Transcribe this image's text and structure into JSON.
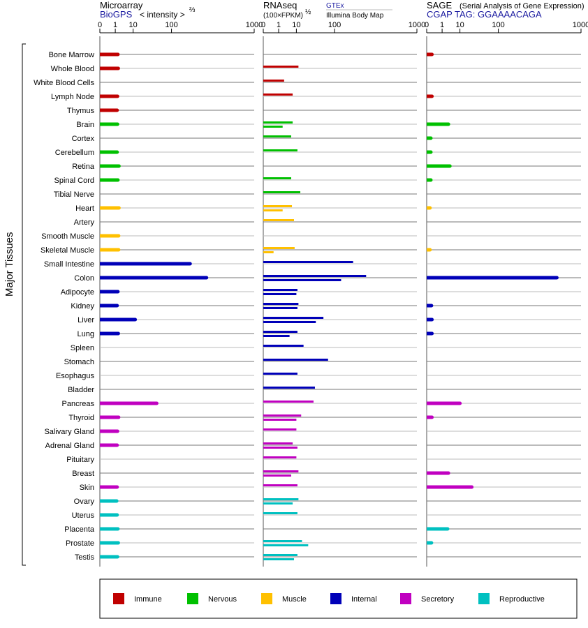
{
  "axis_title": "Major Tissues",
  "panels": [
    {
      "heading": "Microarray",
      "source": "BioGPS",
      "scale_note": "< intensity >",
      "scale_exp": "⅔"
    },
    {
      "heading": "RNAseq",
      "sublabel": "(100×FPKM)",
      "scale_exp": "½",
      "source_link": "GTEx",
      "source": "Illumina Body Map"
    },
    {
      "heading": "SAGE",
      "subtitle": "(Serial Analysis of Gene Expression)",
      "source": "CGAP TAG: GGAAAACAGA"
    }
  ],
  "legend": [
    {
      "label": "Immune",
      "color": "#c00000"
    },
    {
      "label": "Nervous",
      "color": "#00c000"
    },
    {
      "label": "Muscle",
      "color": "#ffc000"
    },
    {
      "label": "Internal",
      "color": "#0000b8"
    },
    {
      "label": "Secretory",
      "color": "#c000c0"
    },
    {
      "label": "Reproductive",
      "color": "#00c0c0"
    }
  ],
  "chart_data": {
    "type": "bar",
    "x_ticks": [
      0,
      1,
      10,
      100,
      1000
    ],
    "xlim": [
      0,
      1000
    ],
    "x_scale": "power",
    "grid": true,
    "legend_position": "bottom",
    "categories": [
      "Bone Marrow",
      "Whole Blood",
      "White Blood Cells",
      "Lymph Node",
      "Thymus",
      "Brain",
      "Cortex",
      "Cerebellum",
      "Retina",
      "Spinal Cord",
      "Tibial Nerve",
      "Heart",
      "Artery",
      "Smooth Muscle",
      "Skeletal Muscle",
      "Small Intestine",
      "Colon",
      "Adipocyte",
      "Kidney",
      "Liver",
      "Lung",
      "Spleen",
      "Stomach",
      "Esophagus",
      "Bladder",
      "Pancreas",
      "Thyroid",
      "Salivary Gland",
      "Adrenal Gland",
      "Pituitary",
      "Breast",
      "Skin",
      "Ovary",
      "Uterus",
      "Placenta",
      "Prostate",
      "Testis"
    ],
    "groups": [
      "Immune",
      "Immune",
      "Immune",
      "Immune",
      "Immune",
      "Nervous",
      "Nervous",
      "Nervous",
      "Nervous",
      "Nervous",
      "Nervous",
      "Muscle",
      "Muscle",
      "Muscle",
      "Muscle",
      "Internal",
      "Internal",
      "Internal",
      "Internal",
      "Internal",
      "Internal",
      "Internal",
      "Internal",
      "Internal",
      "Internal",
      "Secretory",
      "Secretory",
      "Secretory",
      "Secretory",
      "Secretory",
      "Secretory",
      "Secretory",
      "Reproductive",
      "Reproductive",
      "Reproductive",
      "Reproductive",
      "Reproductive"
    ],
    "series": [
      {
        "name": "Microarray",
        "values": [
          1.6,
          1.7,
          null,
          1.5,
          1.4,
          1.5,
          null,
          1.4,
          1.9,
          1.6,
          null,
          1.9,
          null,
          1.8,
          1.8,
          200,
          330,
          1.6,
          1.4,
          12,
          1.7,
          null,
          null,
          null,
          null,
          50,
          1.8,
          1.5,
          1.4,
          null,
          null,
          1.4,
          1.3,
          1.4,
          1.6,
          1.7,
          1.5
        ]
      },
      {
        "name": "RNAseq GTEx",
        "values": [
          null,
          12,
          2.5,
          7,
          null,
          7,
          6,
          11,
          null,
          6,
          14,
          6.5,
          8,
          null,
          8.5,
          200,
          300,
          11,
          12,
          60,
          11,
          18,
          75,
          11,
          38,
          35,
          15,
          10,
          7,
          10,
          12,
          11,
          12,
          11,
          null,
          16,
          11
        ]
      },
      {
        "name": "RNAseq Illumina Body Map",
        "values": [
          null,
          null,
          null,
          null,
          null,
          2,
          null,
          null,
          null,
          null,
          null,
          2,
          null,
          null,
          0.3,
          null,
          130,
          10,
          11,
          40,
          5,
          null,
          null,
          null,
          null,
          null,
          10,
          null,
          11,
          null,
          6,
          null,
          7,
          null,
          null,
          25,
          8
        ]
      },
      {
        "name": "SAGE",
        "values": [
          0.04,
          null,
          null,
          0.04,
          null,
          2.8,
          0.02,
          0.02,
          3.4,
          0.02,
          null,
          0.01,
          null,
          null,
          0.01,
          null,
          600,
          null,
          0.03,
          0.04,
          0.04,
          null,
          null,
          null,
          null,
          10,
          0.04,
          null,
          null,
          null,
          2.8,
          25,
          null,
          null,
          2.5,
          0.03,
          null
        ]
      }
    ]
  }
}
